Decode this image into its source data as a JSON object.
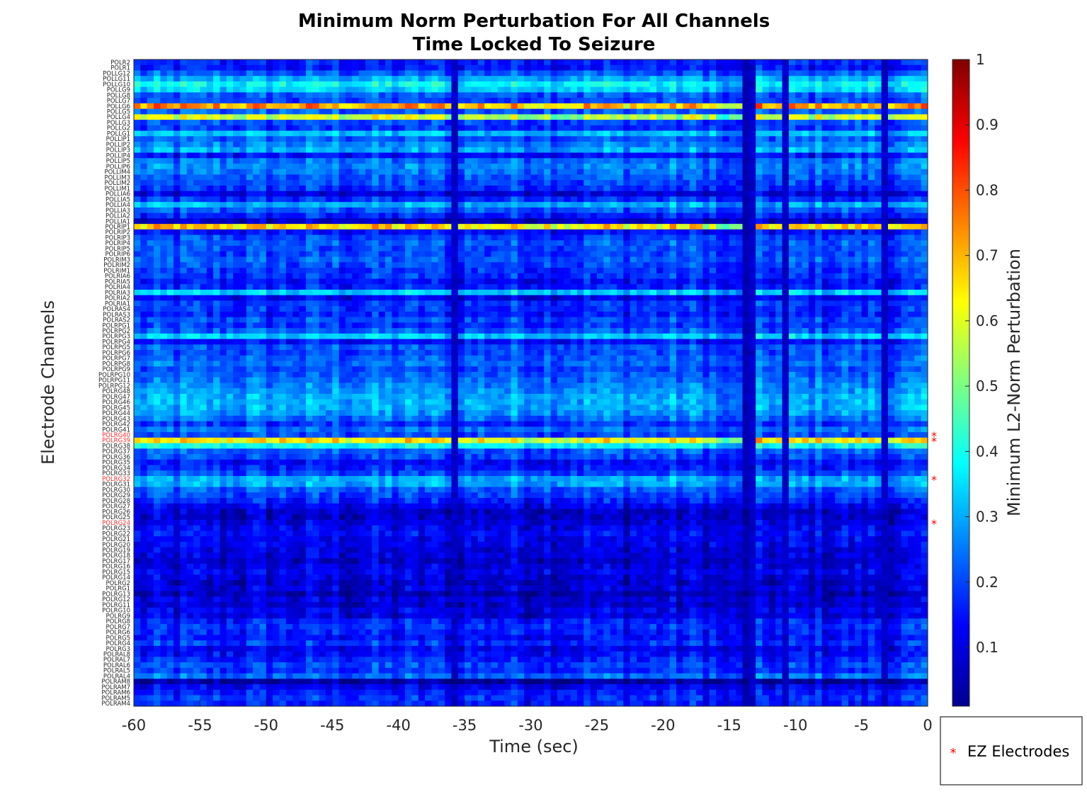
{
  "chart_data": {
    "type": "heatmap",
    "title": [
      "Minimum Norm Perturbation For All Channels",
      "Time Locked To Seizure"
    ],
    "xlabel": "Time (sec)",
    "ylabel": "Electrode Channels",
    "xlim": [
      -60,
      0
    ],
    "x_ticks": [
      -60,
      -55,
      -50,
      -45,
      -40,
      -35,
      -30,
      -25,
      -20,
      -15,
      -10,
      -5,
      0
    ],
    "colorbar": {
      "label": "Minimum L2-Norm Perturbation",
      "colormap": "jet",
      "range": [
        0.01,
        1
      ],
      "ticks": [
        0.1,
        0.2,
        0.3,
        0.4,
        0.5,
        0.6,
        0.7,
        0.8,
        0.9,
        1
      ]
    },
    "legend": {
      "entries": [
        {
          "marker": "*",
          "color": "#ff0000",
          "label": "EZ Electrodes"
        }
      ],
      "placement": "bottom-right outside"
    },
    "channels": [
      "POLR2",
      "POLR1",
      "POLLG12",
      "POLLG11",
      "POLLG10",
      "POLLG9",
      "POLLG8",
      "POLLG7",
      "POLLG6",
      "POLLG5",
      "POLLG4",
      "POLLG3",
      "POLLG2",
      "POLLG1",
      "POLLIP1",
      "POLLIP2",
      "POLLIP3",
      "POLLIP4",
      "POLLIP5",
      "POLLIP6",
      "POLLIM4",
      "POLLIM3",
      "POLLIM2",
      "POLLIM1",
      "POLLIA6",
      "POLLIA5",
      "POLLIA4",
      "POLLIA3",
      "POLLIA2",
      "POLLIA1",
      "POLRIP1",
      "POLRIP2",
      "POLRIP3",
      "POLRIP4",
      "POLRIP5",
      "POLRIP6",
      "POLRIM3",
      "POLRIM2",
      "POLRIM1",
      "POLRIA6",
      "POLRIA5",
      "POLRIA4",
      "POLRIA3",
      "POLRIA2",
      "POLRIA1",
      "POLRAS4",
      "POLRAS3",
      "POLRAS2",
      "POLRPG1",
      "POLRPG2",
      "POLRPG3",
      "POLRPG4",
      "POLRPG5",
      "POLRPG6",
      "POLRPG7",
      "POLRPG8",
      "POLRPG9",
      "POLRPG10",
      "POLRPG11",
      "POLRPG12",
      "POLRG48",
      "POLRG47",
      "POLRG46",
      "POLRG45",
      "POLRG44",
      "POLRG43",
      "POLRG42",
      "POLRG41",
      "POLRG40",
      "POLRG39",
      "POLRG38",
      "POLRG37",
      "POLRG36",
      "POLRG35",
      "POLRG34",
      "POLRG33",
      "POLRG32",
      "POLRG31",
      "POLRG30",
      "POLRG29",
      "POLRG28",
      "POLRG27",
      "POLRG26",
      "POLRG25",
      "POLRG24",
      "POLRG23",
      "POLRG22",
      "POLRG21",
      "POLRG20",
      "POLRG19",
      "POLRG18",
      "POLRG17",
      "POLRG16",
      "POLRG15",
      "POLRG14",
      "POLRG2",
      "POLRG1",
      "POLRG13",
      "POLRG12",
      "POLRG11",
      "POLRG10",
      "POLRG9",
      "POLRG8",
      "POLRG7",
      "POLRG6",
      "POLRG5",
      "POLRG4",
      "POLRG3",
      "POLRAL8",
      "POLRAL7",
      "POLRAL6",
      "POLRAL5",
      "POLRAL4",
      "POLRAM8",
      "POLRAM7",
      "POLRAM6",
      "POLRAM5",
      "POLRAM4"
    ],
    "ez_channels": [
      "POLRG40",
      "POLRG39",
      "POLRG32",
      "POLRG24"
    ],
    "time_bins": 120,
    "row_profiles": {
      "POLR2": 0.16,
      "POLR1": 0.15,
      "POLLG12": 0.22,
      "POLLG11": 0.3,
      "POLLG10": 0.38,
      "POLLG9": 0.34,
      "POLLG8": 0.22,
      "POLLG7": 0.2,
      "POLLG6": 0.72,
      "POLLG5": 0.22,
      "POLLG4": 0.58,
      "POLLG3": 0.2,
      "POLLG2": 0.18,
      "POLLG1": 0.32,
      "POLLIP1": 0.22,
      "POLLIP2": 0.26,
      "POLLIP3": 0.3,
      "POLLIP4": 0.14,
      "POLLIP5": 0.24,
      "POLLIP6": 0.26,
      "POLLIM4": 0.24,
      "POLLIM3": 0.22,
      "POLLIM2": 0.2,
      "POLLIM1": 0.18,
      "POLLIA6": 0.1,
      "POLLIA5": 0.18,
      "POLLIA4": 0.3,
      "POLLIA3": 0.22,
      "POLLIA2": 0.16,
      "POLLIA1": 0.08,
      "POLRIP1": 0.66,
      "POLRIP2": 0.14,
      "POLRIP3": 0.2,
      "POLRIP4": 0.22,
      "POLRIP5": 0.2,
      "POLRIP6": 0.2,
      "POLRIM3": 0.22,
      "POLRIM2": 0.2,
      "POLRIM1": 0.18,
      "POLRIA6": 0.18,
      "POLRIA5": 0.14,
      "POLRIA4": 0.16,
      "POLRIA3": 0.34,
      "POLRIA2": 0.12,
      "POLRIA1": 0.18,
      "POLRAS4": 0.18,
      "POLRAS3": 0.16,
      "POLRAS2": 0.2,
      "POLRPG1": 0.18,
      "POLRPG2": 0.22,
      "POLRPG3": 0.34,
      "POLRPG4": 0.14,
      "POLRPG5": 0.22,
      "POLRPG6": 0.2,
      "POLRPG7": 0.22,
      "POLRPG8": 0.24,
      "POLRPG9": 0.2,
      "POLRPG10": 0.22,
      "POLRPG11": 0.24,
      "POLRPG12": 0.26,
      "POLRG48": 0.28,
      "POLRG47": 0.3,
      "POLRG46": 0.3,
      "POLRG45": 0.3,
      "POLRG44": 0.28,
      "POLRG43": 0.24,
      "POLRG42": 0.18,
      "POLRG41": 0.24,
      "POLRG40": 0.2,
      "POLRG39": 0.64,
      "POLRG38": 0.38,
      "POLRG37": 0.22,
      "POLRG36": 0.2,
      "POLRG35": 0.14,
      "POLRG34": 0.16,
      "POLRG33": 0.2,
      "POLRG32": 0.3,
      "POLRG31": 0.3,
      "POLRG30": 0.22,
      "POLRG29": 0.2,
      "POLRG28": 0.16,
      "POLRG27": 0.12,
      "POLRG26": 0.08,
      "POLRG25": 0.08,
      "POLRG24": 0.1,
      "POLRG23": 0.12,
      "POLRG22": 0.14,
      "POLRG21": 0.12,
      "POLRG20": 0.12,
      "POLRG19": 0.1,
      "POLRG18": 0.1,
      "POLRG17": 0.08,
      "POLRG16": 0.1,
      "POLRG15": 0.12,
      "POLRG14": 0.1,
      "POLRG2": 0.08,
      "POLRG1": 0.1,
      "POLRG13": 0.06,
      "POLRG12": 0.1,
      "POLRG11": 0.08,
      "POLRG10": 0.12,
      "POLRG9": 0.1,
      "POLRG8": 0.16,
      "POLRG7": 0.18,
      "POLRG6": 0.16,
      "POLRG5": 0.14,
      "POLRG4": 0.18,
      "POLRG3": 0.12,
      "POLRAL8": 0.14,
      "POLRAL7": 0.16,
      "POLRAL6": 0.2,
      "POLRAL5": 0.18,
      "POLRAL4": 0.24,
      "POLRAM8": 0.04,
      "POLRAM7": 0.12,
      "POLRAM6": 0.16,
      "POLRAM5": 0.18,
      "POLRAM4": 0.16
    },
    "dark_time_bands_sec": [
      [
        -14.0,
        -13.0
      ],
      [
        -11.0,
        -10.5
      ],
      [
        -36.0,
        -35.5
      ],
      [
        -3.5,
        -3.0
      ]
    ]
  }
}
